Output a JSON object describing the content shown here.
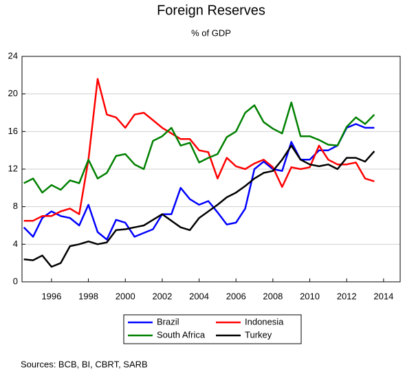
{
  "chart_data": {
    "type": "line",
    "title": "Foreign Reserves",
    "subtitle": "% of GDP",
    "source": "Sources: BCB, BI, CBRT, SARB",
    "x": [
      1994.5,
      1995,
      1995.5,
      1996,
      1996.5,
      1997,
      1997.5,
      1998,
      1998.5,
      1999,
      1999.5,
      2000,
      2000.5,
      2001,
      2001.5,
      2002,
      2002.5,
      2003,
      2003.5,
      2004,
      2004.5,
      2005,
      2005.5,
      2006,
      2006.5,
      2007,
      2007.5,
      2008,
      2008.5,
      2009,
      2009.5,
      2010,
      2010.5,
      2011,
      2011.5,
      2012,
      2012.5,
      2013,
      2013.5
    ],
    "series": [
      {
        "name": "Brazil",
        "color": "#0000ff",
        "values": [
          5.8,
          4.8,
          6.8,
          7.5,
          7.0,
          6.8,
          6.0,
          8.2,
          5.3,
          4.5,
          6.6,
          6.3,
          4.8,
          5.2,
          5.6,
          7.2,
          7.2,
          10.0,
          8.8,
          8.2,
          8.6,
          7.4,
          6.1,
          6.3,
          7.8,
          12.0,
          12.8,
          12.0,
          11.8,
          14.9,
          13.0,
          13.0,
          14.0,
          14.0,
          14.5,
          16.4,
          16.8,
          16.4,
          16.4
        ]
      },
      {
        "name": "Indonesia",
        "color": "#ff0000",
        "values": [
          6.5,
          6.5,
          7.0,
          7.0,
          7.5,
          7.8,
          7.2,
          13.0,
          21.6,
          17.8,
          17.5,
          16.4,
          17.8,
          18.0,
          17.2,
          16.4,
          15.8,
          15.2,
          15.2,
          14.0,
          13.8,
          11.0,
          13.2,
          12.3,
          12.0,
          12.6,
          13.0,
          12.2,
          10.1,
          12.2,
          12.0,
          12.2,
          14.5,
          13.0,
          12.5,
          12.5,
          12.7,
          11.0,
          10.7
        ]
      },
      {
        "name": "South Africa",
        "color": "#008000",
        "values": [
          10.5,
          11.0,
          9.5,
          10.3,
          9.8,
          10.8,
          10.5,
          13.0,
          11.0,
          11.6,
          13.4,
          13.6,
          12.5,
          12.0,
          15.0,
          15.5,
          16.4,
          14.5,
          14.8,
          12.7,
          13.2,
          13.6,
          15.4,
          16.0,
          18.0,
          18.8,
          17.0,
          16.3,
          15.8,
          19.1,
          15.5,
          15.5,
          15.1,
          14.6,
          14.5,
          16.5,
          17.5,
          16.8,
          17.8
        ]
      },
      {
        "name": "Turkey",
        "color": "#000000",
        "values": [
          2.4,
          2.3,
          2.8,
          1.6,
          2.0,
          3.8,
          4.0,
          4.3,
          4.0,
          4.2,
          5.5,
          5.6,
          5.8,
          6.0,
          6.6,
          7.2,
          6.5,
          5.8,
          5.5,
          6.8,
          7.5,
          8.2,
          9.0,
          9.5,
          10.2,
          11.0,
          11.6,
          11.8,
          13.0,
          14.5,
          13.0,
          12.5,
          12.3,
          12.5,
          12.0,
          13.2,
          13.2,
          12.8,
          13.9
        ]
      }
    ],
    "xlim": [
      1994.4,
      2014.9
    ],
    "xticks": [
      1996,
      1998,
      2000,
      2002,
      2004,
      2006,
      2008,
      2010,
      2012,
      2014
    ],
    "ylim": [
      0,
      24
    ],
    "yticks": [
      0,
      4,
      8,
      12,
      16,
      20,
      24
    ],
    "grid": true,
    "legend": "bottom"
  }
}
